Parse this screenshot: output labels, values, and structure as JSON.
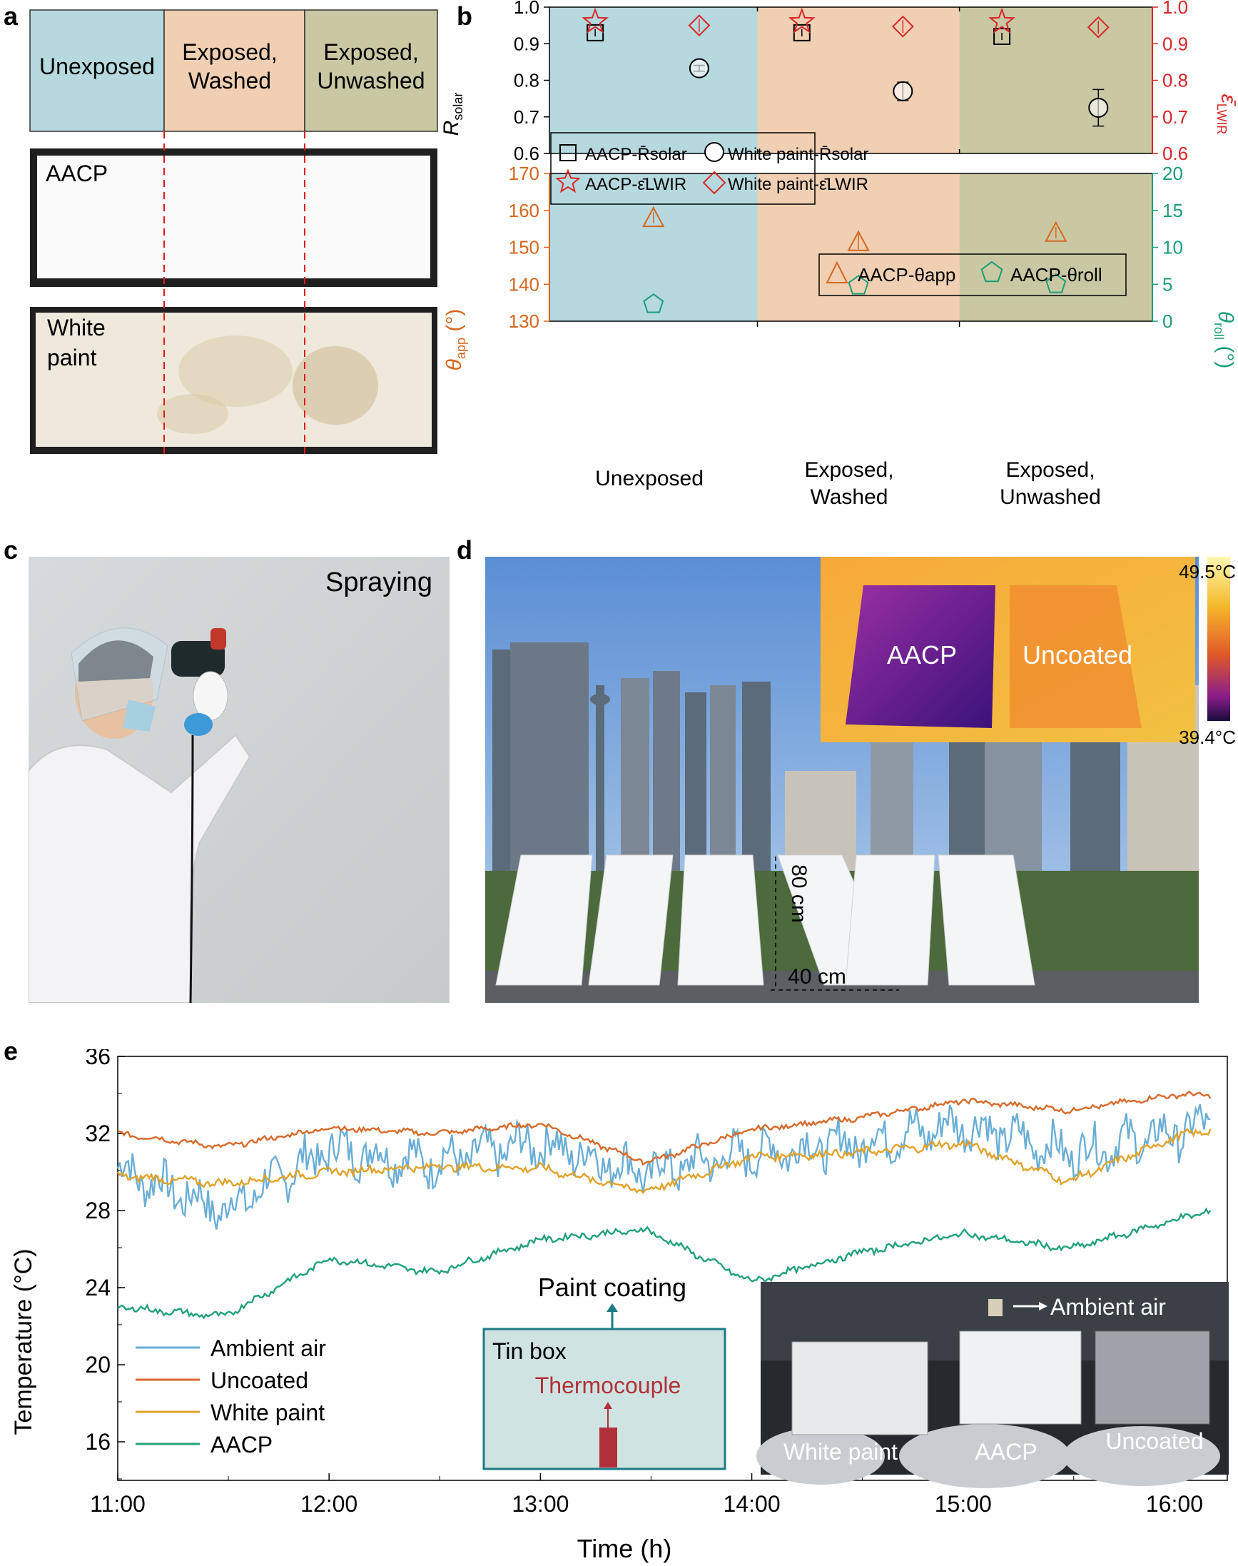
{
  "panel_labels": {
    "a": "a",
    "b": "b",
    "c": "c",
    "d": "d",
    "e": "e"
  },
  "colors": {
    "unexposed_bg": "#b6d9df",
    "washed_bg": "#f0cfb3",
    "unwashed_bg": "#c9c8a3",
    "red_axis": "#d62728",
    "orange_axis": "#d6661f",
    "green_axis": "#1a9e77",
    "ambient": "#6aaed6",
    "uncoated": "#d66a2a",
    "white_paint": "#e0a22a",
    "aacp": "#21a07a"
  },
  "panel_a": {
    "headers": [
      [
        "Unexposed"
      ],
      [
        "Exposed,",
        "Washed"
      ],
      [
        "Exposed,",
        "Unwashed"
      ]
    ],
    "sample1_label": "AACP",
    "sample2_label": [
      "White",
      "paint"
    ]
  },
  "panel_b": {
    "groups": [
      "Unexposed",
      [
        "Exposed,",
        "Washed"
      ],
      [
        "Exposed,",
        "Unwashed"
      ]
    ],
    "top_left_ticks": [
      "0.6",
      "0.7",
      "0.8",
      "0.9",
      "1.0"
    ],
    "top_right_ticks": [
      "0.6",
      "0.7",
      "0.8",
      "0.9",
      "1.0"
    ],
    "bottom_left_ticks": [
      "130",
      "140",
      "150",
      "160",
      "170"
    ],
    "bottom_right_ticks": [
      "0",
      "5",
      "10",
      "15",
      "20"
    ],
    "legend_top": [
      "AACP-R̄solar",
      "White paint-R̄solar",
      "AACP-ε̄LWIR",
      "White paint-ε̄LWIR"
    ],
    "legend_bottom": [
      "AACP-θapp",
      "AACP-θroll"
    ]
  },
  "chart_data": [
    {
      "type": "scatter",
      "title": "",
      "xlabel": "",
      "categories": [
        "Unexposed",
        "Exposed, Washed",
        "Exposed, Unwashed"
      ],
      "ylabel": "R̄solar",
      "y2label": "ε̄LWIR",
      "ylim": [
        0.6,
        1.0
      ],
      "y2lim": [
        0.6,
        1.0
      ],
      "series": [
        {
          "name": "AACP-R̄solar",
          "values": [
            0.93,
            0.93,
            0.92
          ],
          "err": [
            0.01,
            0.01,
            0.01
          ]
        },
        {
          "name": "White paint-R̄solar",
          "values": [
            0.833,
            0.77,
            0.725
          ],
          "err": [
            0.008,
            0.025,
            0.05
          ]
        },
        {
          "name": "AACP-ε̄LWIR",
          "values": [
            0.96,
            0.96,
            0.96
          ],
          "err": [
            0.01,
            0.01,
            0.01
          ]
        },
        {
          "name": "White paint-ε̄LWIR",
          "values": [
            0.95,
            0.947,
            0.945
          ],
          "err": [
            0.005,
            0.006,
            0.005
          ]
        }
      ]
    },
    {
      "type": "scatter",
      "title": "",
      "categories": [
        "Unexposed",
        "Exposed, Washed",
        "Exposed, Unwashed"
      ],
      "ylabel": "θapp (°)",
      "y2label": "θroll (°)",
      "ylim": [
        130,
        170
      ],
      "y2lim": [
        0,
        20
      ],
      "series": [
        {
          "name": "AACP-θapp",
          "values": [
            158,
            151.5,
            154
          ],
          "err": [
            1.5,
            2,
            1.5
          ]
        },
        {
          "name": "AACP-θroll",
          "values": [
            2.3,
            4.8,
            5.0
          ],
          "err": [
            0.6,
            0.4,
            0.5
          ]
        }
      ]
    },
    {
      "type": "line",
      "title": "",
      "xlabel": "Time (h)",
      "ylabel": "Temperature (°C)",
      "ylim": [
        14,
        36
      ],
      "x_ticks": [
        "11:00",
        "12:00",
        "13:00",
        "14:00",
        "15:00",
        "16:00"
      ],
      "y_ticks": [
        "16",
        "20",
        "24",
        "28",
        "32",
        "36"
      ],
      "x_hours": [
        11.0,
        11.5,
        12.0,
        12.5,
        13.0,
        13.5,
        14.0,
        14.5,
        15.0,
        15.5,
        16.0,
        16.17
      ],
      "series": [
        {
          "name": "Ambient air",
          "values": [
            30.2,
            28.0,
            31.2,
            30.5,
            31.5,
            30.0,
            31.0,
            31.5,
            32.5,
            31.0,
            32.0,
            32.5
          ]
        },
        {
          "name": "Uncoated",
          "values": [
            32.0,
            31.3,
            32.3,
            32.0,
            32.5,
            30.5,
            32.2,
            32.8,
            33.7,
            33.2,
            34.0,
            34.0
          ]
        },
        {
          "name": "White paint",
          "values": [
            29.8,
            29.4,
            30.0,
            30.3,
            30.2,
            29.0,
            30.8,
            31.0,
            31.5,
            29.5,
            31.8,
            32.2
          ]
        },
        {
          "name": "AACP",
          "values": [
            23.0,
            22.5,
            25.5,
            24.8,
            26.5,
            27.0,
            24.3,
            25.8,
            26.8,
            26.0,
            27.5,
            28.0
          ]
        }
      ]
    }
  ],
  "panel_c": {
    "caption": "Spraying"
  },
  "panel_d": {
    "inset_labels": [
      "AACP",
      "Uncoated"
    ],
    "scale_max": "49.5°C",
    "scale_min": "39.4°C",
    "height_label": "80 cm",
    "width_label": "40 cm"
  },
  "panel_e": {
    "legend": [
      "Ambient air",
      "Uncoated",
      "White paint",
      "AACP"
    ],
    "schematic": {
      "top": "Paint coating",
      "box": "Tin box",
      "sensor": "Thermocouple"
    },
    "photo_labels": {
      "ambient": "Ambient air",
      "white": "White paint",
      "aacp": "AACP",
      "uncoated": "Uncoated"
    }
  }
}
